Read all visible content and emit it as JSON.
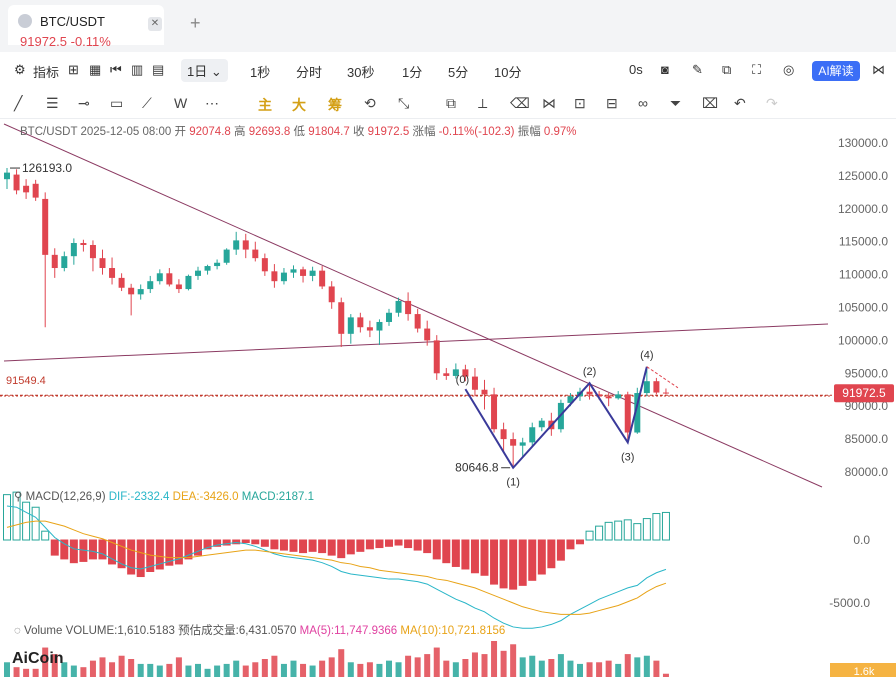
{
  "tab": {
    "title": "BTC/USDT",
    "price": "91972.5",
    "change": "-0.11%",
    "close": "✕",
    "add": "+"
  },
  "toolbar": {
    "indicator_label": "指标",
    "intervals": [
      "1秒",
      "分时",
      "30秒",
      "1分",
      "5分",
      "10分"
    ],
    "active_interval": "1日",
    "countdown": "0s",
    "ai_label": "AI解读"
  },
  "drawing_toolbar": {
    "main": "主",
    "big": "大",
    "chip": "筹"
  },
  "info_bar": {
    "symbol": "BTC/USDT",
    "date": "2025-12-05 08:00",
    "open_label": "开",
    "open": "92074.8",
    "high_label": "高",
    "high": "92693.8",
    "low_label": "低",
    "low": "91804.7",
    "close_label": "收",
    "close": "91972.5",
    "change_label": "涨幅",
    "change": "-0.11%(-102.3)",
    "amp_label": "振幅",
    "amp": "0.97%"
  },
  "macd_info": {
    "name": "MACD(12,26,9)",
    "dif": "DIF:-2332.4",
    "dea": "DEA:-3426.0",
    "macd": "MACD:2187.1"
  },
  "volume_info": {
    "name": "Volume",
    "volume": "VOLUME:1,610.5183",
    "est": "预估成交量:6,431.0570",
    "ma5": "MA(5):11,747.9366",
    "ma10": "MA(10):10,721.8156"
  },
  "logo": "AiCoin",
  "colors": {
    "up": "#26a69a",
    "down": "#e0454f",
    "trend": "#8b3a62",
    "wave": "#3a3a9a",
    "dif": "#29b6c8",
    "dea": "#e8a317"
  },
  "chart_data": {
    "type": "candlestick",
    "price_axis": {
      "ticks": [
        130000,
        125000,
        120000,
        115000,
        110000,
        105000,
        100000,
        95000,
        90000,
        85000,
        80000
      ],
      "labels": [
        "130000.0",
        "125000.0",
        "120000.0",
        "115000.0",
        "110000.0",
        "105000.0",
        "100000.0",
        "95000.0",
        "90000.0",
        "85000.0",
        "80000.0"
      ],
      "current_price": "91972.5",
      "ref_line_value": 91549.4,
      "ref_line_label": "91549.4"
    },
    "annotations": {
      "high_label": "126193.0",
      "high_value": 126193.0,
      "low_label": "80646.8",
      "low_value": 80646.8,
      "wave_labels": [
        "(0)",
        "(1)",
        "(2)",
        "(3)",
        "(4)"
      ]
    },
    "candles": [
      {
        "o": 124500,
        "h": 126193,
        "l": 123000,
        "c": 125500
      },
      {
        "o": 125200,
        "h": 126000,
        "l": 122200,
        "c": 122800
      },
      {
        "o": 123500,
        "h": 124500,
        "l": 121500,
        "c": 122500
      },
      {
        "o": 123800,
        "h": 124400,
        "l": 121200,
        "c": 121700
      },
      {
        "o": 121500,
        "h": 122500,
        "l": 102000,
        "c": 113000
      },
      {
        "o": 113000,
        "h": 114000,
        "l": 109500,
        "c": 111000
      },
      {
        "o": 111000,
        "h": 113500,
        "l": 110500,
        "c": 112800
      },
      {
        "o": 112800,
        "h": 115500,
        "l": 111500,
        "c": 114800
      },
      {
        "o": 114800,
        "h": 115300,
        "l": 113500,
        "c": 114500
      },
      {
        "o": 114500,
        "h": 115200,
        "l": 110500,
        "c": 112500
      },
      {
        "o": 112500,
        "h": 113800,
        "l": 110000,
        "c": 111000
      },
      {
        "o": 111000,
        "h": 112600,
        "l": 108500,
        "c": 109500
      },
      {
        "o": 109500,
        "h": 110200,
        "l": 107500,
        "c": 108000
      },
      {
        "o": 108000,
        "h": 108600,
        "l": 103800,
        "c": 107000
      },
      {
        "o": 107000,
        "h": 108500,
        "l": 106200,
        "c": 107800
      },
      {
        "o": 107800,
        "h": 109800,
        "l": 107200,
        "c": 109000
      },
      {
        "o": 109000,
        "h": 110800,
        "l": 108500,
        "c": 110200
      },
      {
        "o": 110200,
        "h": 111000,
        "l": 108200,
        "c": 108500
      },
      {
        "o": 108500,
        "h": 109300,
        "l": 107200,
        "c": 107800
      },
      {
        "o": 107800,
        "h": 110000,
        "l": 107600,
        "c": 109800
      },
      {
        "o": 109800,
        "h": 111200,
        "l": 109200,
        "c": 110600
      },
      {
        "o": 110600,
        "h": 111500,
        "l": 110000,
        "c": 111300
      },
      {
        "o": 111300,
        "h": 112300,
        "l": 110800,
        "c": 111800
      },
      {
        "o": 111800,
        "h": 114000,
        "l": 111500,
        "c": 113800
      },
      {
        "o": 113800,
        "h": 116500,
        "l": 113000,
        "c": 115200
      },
      {
        "o": 115200,
        "h": 116200,
        "l": 112500,
        "c": 113800
      },
      {
        "o": 113800,
        "h": 115000,
        "l": 112000,
        "c": 112500
      },
      {
        "o": 112500,
        "h": 113200,
        "l": 109800,
        "c": 110500
      },
      {
        "o": 110500,
        "h": 111600,
        "l": 108000,
        "c": 109000
      },
      {
        "o": 109000,
        "h": 111000,
        "l": 108500,
        "c": 110300
      },
      {
        "o": 110300,
        "h": 111400,
        "l": 109500,
        "c": 110800
      },
      {
        "o": 110800,
        "h": 111200,
        "l": 108800,
        "c": 109800
      },
      {
        "o": 109800,
        "h": 111200,
        "l": 109000,
        "c": 110600
      },
      {
        "o": 110600,
        "h": 111300,
        "l": 107800,
        "c": 108200
      },
      {
        "o": 108200,
        "h": 109000,
        "l": 104800,
        "c": 105800
      },
      {
        "o": 105800,
        "h": 106500,
        "l": 99000,
        "c": 101000
      },
      {
        "o": 101000,
        "h": 104000,
        "l": 99500,
        "c": 103500
      },
      {
        "o": 103500,
        "h": 104200,
        "l": 101200,
        "c": 102000
      },
      {
        "o": 102000,
        "h": 103000,
        "l": 100500,
        "c": 101500
      },
      {
        "o": 101500,
        "h": 103200,
        "l": 99300,
        "c": 102800
      },
      {
        "o": 102800,
        "h": 104800,
        "l": 102200,
        "c": 104200
      },
      {
        "o": 104200,
        "h": 106500,
        "l": 103600,
        "c": 106000
      },
      {
        "o": 106000,
        "h": 107300,
        "l": 103000,
        "c": 104000
      },
      {
        "o": 104000,
        "h": 104800,
        "l": 101200,
        "c": 101800
      },
      {
        "o": 101800,
        "h": 103000,
        "l": 99200,
        "c": 100000
      },
      {
        "o": 100000,
        "h": 100800,
        "l": 94000,
        "c": 95000
      },
      {
        "o": 95000,
        "h": 95800,
        "l": 94000,
        "c": 94600
      },
      {
        "o": 94600,
        "h": 96500,
        "l": 94200,
        "c": 95600
      },
      {
        "o": 95600,
        "h": 96300,
        "l": 93800,
        "c": 94500
      },
      {
        "o": 94500,
        "h": 95800,
        "l": 91500,
        "c": 92500
      },
      {
        "o": 92500,
        "h": 94000,
        "l": 89500,
        "c": 91800
      },
      {
        "o": 91800,
        "h": 92800,
        "l": 86000,
        "c": 86500
      },
      {
        "o": 86500,
        "h": 87500,
        "l": 83000,
        "c": 85000
      },
      {
        "o": 85000,
        "h": 86000,
        "l": 80646.8,
        "c": 84000
      },
      {
        "o": 84000,
        "h": 85200,
        "l": 82200,
        "c": 84500
      },
      {
        "o": 84500,
        "h": 87500,
        "l": 83800,
        "c": 86800
      },
      {
        "o": 86800,
        "h": 88200,
        "l": 86200,
        "c": 87800
      },
      {
        "o": 87800,
        "h": 89000,
        "l": 85500,
        "c": 86500
      },
      {
        "o": 86500,
        "h": 91000,
        "l": 86000,
        "c": 90500
      },
      {
        "o": 90500,
        "h": 92000,
        "l": 90000,
        "c": 91500
      },
      {
        "o": 91500,
        "h": 92800,
        "l": 90800,
        "c": 92200
      },
      {
        "o": 92200,
        "h": 93500,
        "l": 91000,
        "c": 91800
      },
      {
        "o": 91800,
        "h": 92300,
        "l": 91000,
        "c": 91500
      },
      {
        "o": 91500,
        "h": 92000,
        "l": 90000,
        "c": 91200
      },
      {
        "o": 91200,
        "h": 92300,
        "l": 91000,
        "c": 91800
      },
      {
        "o": 91800,
        "h": 92200,
        "l": 84500,
        "c": 86000
      },
      {
        "o": 86000,
        "h": 92800,
        "l": 85800,
        "c": 92000
      },
      {
        "o": 92000,
        "h": 96000,
        "l": 91500,
        "c": 93800
      },
      {
        "o": 93800,
        "h": 94300,
        "l": 91800,
        "c": 92074.8
      },
      {
        "o": 92074.8,
        "h": 92693.8,
        "l": 91804.7,
        "c": 91972.5
      }
    ],
    "macd": {
      "axis_ticks": [
        0,
        -5000
      ],
      "axis_labels": [
        "0.0",
        "-5000.0"
      ],
      "hist": [
        3600,
        3800,
        3000,
        2600,
        700,
        -1200,
        -1500,
        -1800,
        -1700,
        -1500,
        -1500,
        -1900,
        -2200,
        -2700,
        -2900,
        -2500,
        -2300,
        -2000,
        -1900,
        -1500,
        -1200,
        -700,
        -500,
        -400,
        -300,
        -200,
        -300,
        -500,
        -700,
        -800,
        -900,
        -1000,
        -900,
        -1000,
        -1200,
        -1400,
        -1100,
        -900,
        -700,
        -600,
        -500,
        -400,
        -600,
        -800,
        -1000,
        -1500,
        -1800,
        -2100,
        -2300,
        -2600,
        -2800,
        -3500,
        -3800,
        -3900,
        -3600,
        -3200,
        -2700,
        -2200,
        -1600,
        -700,
        -300,
        700,
        1100,
        1400,
        1500,
        1600,
        1300,
        1700,
        2100,
        2187.1
      ],
      "dif": [
        2700,
        2600,
        2200,
        1800,
        1000,
        200,
        -300,
        -700,
        -800,
        -900,
        -1100,
        -1500,
        -1900,
        -2200,
        -2300,
        -2100,
        -1900,
        -1700,
        -1500,
        -1200,
        -900,
        -600,
        -400,
        -300,
        -200,
        -300,
        -500,
        -800,
        -1100,
        -1300,
        -1400,
        -1500,
        -1600,
        -1800,
        -2100,
        -2500,
        -2700,
        -2800,
        -2900,
        -3000,
        -3100,
        -3100,
        -3200,
        -3300,
        -3500,
        -3900,
        -4300,
        -4700,
        -5000,
        -5400,
        -5700,
        -6200,
        -6600,
        -6900,
        -7000,
        -7000,
        -6900,
        -6700,
        -6400,
        -5900,
        -5500,
        -5100,
        -4700,
        -4400,
        -4100,
        -3800,
        -3600,
        -3000,
        -2600,
        -2332.4
      ],
      "dea": [
        1000,
        1200,
        1400,
        1500,
        1500,
        1300,
        1100,
        800,
        500,
        300,
        100,
        -200,
        -500,
        -800,
        -1000,
        -1200,
        -1300,
        -1400,
        -1400,
        -1400,
        -1300,
        -1200,
        -1100,
        -1000,
        -900,
        -800,
        -800,
        -900,
        -1000,
        -1100,
        -1200,
        -1300,
        -1400,
        -1500,
        -1600,
        -1800,
        -1900,
        -2100,
        -2200,
        -2400,
        -2500,
        -2600,
        -2700,
        -2800,
        -2900,
        -3100,
        -3200,
        -3400,
        -3600,
        -3800,
        -4100,
        -4400,
        -4700,
        -5000,
        -5300,
        -5500,
        -5700,
        -5800,
        -5900,
        -5900,
        -5900,
        -5800,
        -5600,
        -5400,
        -5200,
        -4900,
        -4600,
        -4100,
        -3700,
        -3426.0
      ]
    },
    "volume": {
      "axis_label": "1.6k",
      "values": [
        9,
        6,
        5,
        5,
        18,
        14,
        9,
        7,
        6,
        10,
        12,
        9,
        13,
        11,
        8,
        8,
        7,
        8,
        12,
        7,
        8,
        5,
        7,
        8,
        10,
        7,
        9,
        11,
        13,
        8,
        10,
        8,
        7,
        10,
        12,
        17,
        9,
        8,
        9,
        8,
        10,
        9,
        13,
        12,
        14,
        18,
        10,
        9,
        11,
        15,
        14,
        22,
        16,
        20,
        12,
        13,
        10,
        11,
        14,
        10,
        8,
        9,
        9,
        10,
        8,
        14,
        12,
        13,
        10,
        2
      ]
    }
  }
}
